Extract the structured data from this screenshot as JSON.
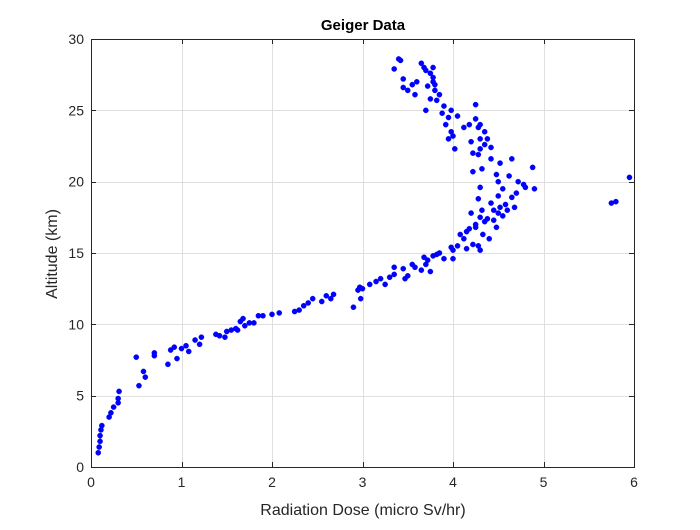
{
  "chart_data": {
    "type": "scatter",
    "title": "Geiger Data",
    "xlabel": "Radiation Dose (micro Sv/hr)",
    "ylabel": "Altitude (km)",
    "xlim": [
      0,
      6
    ],
    "ylim": [
      0,
      30
    ],
    "xticks": [
      "0",
      "1",
      "2",
      "3",
      "4",
      "5",
      "6"
    ],
    "yticks": [
      "0",
      "5",
      "10",
      "15",
      "20",
      "25",
      "30"
    ],
    "grid": true,
    "legend": "none",
    "marker_color": "#0000ff",
    "series": [
      {
        "points": [
          [
            0.08,
            1.0
          ],
          [
            0.09,
            1.4
          ],
          [
            0.1,
            1.8
          ],
          [
            0.1,
            2.2
          ],
          [
            0.11,
            2.6
          ],
          [
            0.12,
            2.9
          ],
          [
            0.2,
            3.5
          ],
          [
            0.22,
            3.8
          ],
          [
            0.25,
            4.2
          ],
          [
            0.3,
            4.5
          ],
          [
            0.3,
            4.8
          ],
          [
            0.31,
            5.3
          ],
          [
            0.53,
            5.7
          ],
          [
            0.6,
            6.3
          ],
          [
            0.58,
            6.7
          ],
          [
            0.5,
            7.7
          ],
          [
            0.7,
            7.8
          ],
          [
            0.7,
            8.0
          ],
          [
            0.85,
            7.2
          ],
          [
            0.88,
            8.2
          ],
          [
            0.95,
            7.6
          ],
          [
            0.92,
            8.4
          ],
          [
            1.0,
            8.3
          ],
          [
            1.05,
            8.5
          ],
          [
            1.08,
            8.1
          ],
          [
            1.15,
            8.9
          ],
          [
            1.2,
            8.6
          ],
          [
            1.22,
            9.1
          ],
          [
            1.38,
            9.3
          ],
          [
            1.42,
            9.2
          ],
          [
            1.48,
            9.1
          ],
          [
            1.5,
            9.5
          ],
          [
            1.55,
            9.6
          ],
          [
            1.6,
            9.7
          ],
          [
            1.62,
            9.6
          ],
          [
            1.65,
            10.2
          ],
          [
            1.7,
            9.9
          ],
          [
            1.68,
            10.4
          ],
          [
            1.75,
            10.1
          ],
          [
            1.8,
            10.1
          ],
          [
            1.85,
            10.6
          ],
          [
            1.9,
            10.6
          ],
          [
            2.0,
            10.7
          ],
          [
            2.08,
            10.8
          ],
          [
            2.25,
            10.9
          ],
          [
            2.3,
            11.0
          ],
          [
            2.35,
            11.3
          ],
          [
            2.4,
            11.5
          ],
          [
            2.45,
            11.8
          ],
          [
            2.55,
            11.6
          ],
          [
            2.6,
            12.0
          ],
          [
            2.65,
            11.8
          ],
          [
            2.68,
            12.1
          ],
          [
            2.9,
            11.2
          ],
          [
            2.95,
            12.4
          ],
          [
            2.97,
            12.6
          ],
          [
            2.98,
            11.8
          ],
          [
            3.0,
            12.5
          ],
          [
            3.08,
            12.8
          ],
          [
            3.15,
            13.0
          ],
          [
            3.2,
            13.2
          ],
          [
            3.25,
            12.8
          ],
          [
            3.3,
            13.3
          ],
          [
            3.35,
            13.5
          ],
          [
            3.35,
            14.0
          ],
          [
            3.45,
            13.9
          ],
          [
            3.47,
            13.2
          ],
          [
            3.5,
            13.4
          ],
          [
            3.55,
            14.2
          ],
          [
            3.58,
            14.0
          ],
          [
            3.65,
            13.8
          ],
          [
            3.68,
            14.7
          ],
          [
            3.72,
            14.5
          ],
          [
            3.7,
            14.2
          ],
          [
            3.75,
            13.7
          ],
          [
            3.78,
            14.8
          ],
          [
            3.82,
            14.9
          ],
          [
            3.85,
            15.0
          ],
          [
            3.9,
            14.6
          ],
          [
            3.98,
            15.4
          ],
          [
            4.0,
            15.2
          ],
          [
            4.0,
            14.6
          ],
          [
            4.05,
            15.5
          ],
          [
            4.08,
            16.3
          ],
          [
            4.12,
            16.0
          ],
          [
            4.15,
            16.5
          ],
          [
            4.15,
            15.3
          ],
          [
            4.18,
            16.7
          ],
          [
            4.2,
            17.8
          ],
          [
            4.22,
            15.6
          ],
          [
            4.25,
            16.8
          ],
          [
            4.25,
            17.0
          ],
          [
            4.28,
            15.5
          ],
          [
            4.3,
            15.2
          ],
          [
            4.3,
            17.5
          ],
          [
            4.32,
            18.0
          ],
          [
            4.33,
            16.3
          ],
          [
            4.35,
            17.2
          ],
          [
            4.38,
            17.4
          ],
          [
            4.4,
            16.0
          ],
          [
            4.42,
            18.5
          ],
          [
            4.45,
            17.3
          ],
          [
            4.45,
            18.0
          ],
          [
            4.48,
            16.8
          ],
          [
            4.5,
            17.8
          ],
          [
            4.5,
            19.0
          ],
          [
            4.52,
            18.2
          ],
          [
            4.55,
            17.6
          ],
          [
            4.55,
            19.5
          ],
          [
            4.58,
            18.4
          ],
          [
            4.6,
            18.0
          ],
          [
            4.62,
            20.4
          ],
          [
            4.65,
            18.9
          ],
          [
            4.65,
            21.6
          ],
          [
            4.68,
            18.2
          ],
          [
            4.7,
            19.2
          ],
          [
            4.72,
            20.0
          ],
          [
            4.78,
            19.8
          ],
          [
            4.8,
            19.6
          ],
          [
            4.88,
            21.0
          ],
          [
            4.9,
            19.5
          ],
          [
            4.48,
            20.5
          ],
          [
            4.5,
            20.0
          ],
          [
            4.52,
            21.3
          ],
          [
            4.28,
            18.8
          ],
          [
            4.3,
            19.6
          ],
          [
            4.32,
            20.9
          ],
          [
            4.28,
            21.9
          ],
          [
            4.3,
            22.3
          ],
          [
            4.35,
            22.6
          ],
          [
            4.42,
            21.6
          ],
          [
            4.42,
            22.4
          ],
          [
            4.3,
            23.0
          ],
          [
            4.38,
            23.0
          ],
          [
            4.35,
            23.5
          ],
          [
            4.28,
            23.8
          ],
          [
            4.3,
            24.0
          ],
          [
            4.25,
            24.4
          ],
          [
            4.25,
            25.4
          ],
          [
            4.2,
            22.8
          ],
          [
            4.22,
            22.0
          ],
          [
            4.22,
            20.7
          ],
          [
            4.18,
            24.0
          ],
          [
            4.12,
            23.8
          ],
          [
            4.05,
            24.6
          ],
          [
            4.02,
            22.3
          ],
          [
            4.0,
            23.2
          ],
          [
            3.98,
            23.5
          ],
          [
            3.95,
            23.0
          ],
          [
            3.95,
            24.5
          ],
          [
            3.98,
            25.0
          ],
          [
            3.92,
            24.0
          ],
          [
            3.9,
            25.3
          ],
          [
            3.88,
            24.8
          ],
          [
            3.85,
            26.1
          ],
          [
            3.82,
            25.7
          ],
          [
            3.8,
            26.4
          ],
          [
            3.8,
            26.8
          ],
          [
            3.78,
            27.0
          ],
          [
            3.78,
            27.3
          ],
          [
            3.75,
            27.6
          ],
          [
            3.72,
            26.7
          ],
          [
            3.7,
            27.8
          ],
          [
            3.68,
            28.0
          ],
          [
            3.65,
            28.3
          ],
          [
            3.6,
            27.0
          ],
          [
            3.58,
            26.1
          ],
          [
            3.55,
            26.8
          ],
          [
            3.5,
            26.4
          ],
          [
            3.45,
            26.6
          ],
          [
            3.45,
            27.2
          ],
          [
            3.42,
            28.5
          ],
          [
            3.4,
            28.6
          ],
          [
            3.35,
            27.9
          ],
          [
            3.75,
            25.8
          ],
          [
            3.78,
            28.0
          ],
          [
            3.7,
            25.0
          ],
          [
            5.75,
            18.5
          ],
          [
            5.8,
            18.6
          ],
          [
            5.95,
            20.3
          ]
        ]
      }
    ]
  }
}
